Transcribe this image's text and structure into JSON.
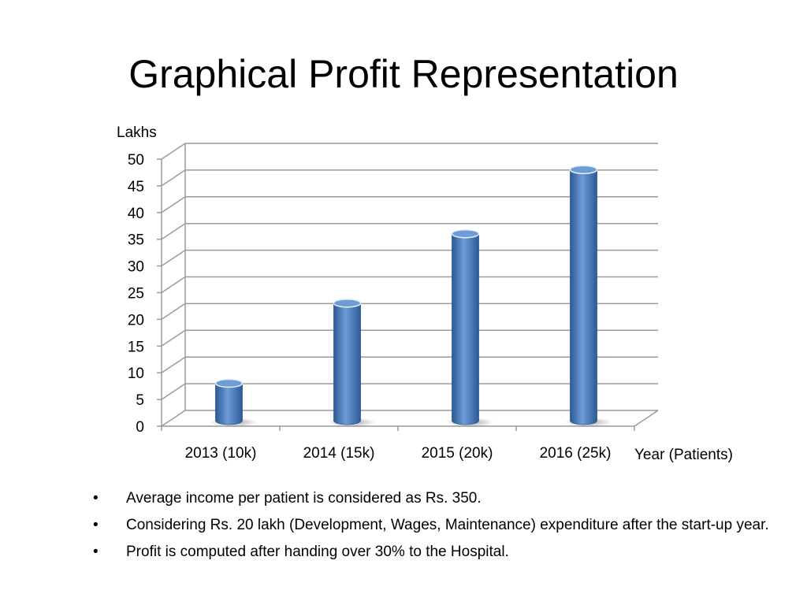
{
  "slide": {
    "title": "Graphical Profit Representation",
    "bullet_symbol": "•",
    "bullets": [
      "Average income per patient is considered as Rs. 350.",
      "Considering Rs. 20 lakh (Development, Wages, Maintenance) expenditure after the start-up year.",
      "Profit is computed after handing over 30% to the Hospital."
    ]
  },
  "chart_data": {
    "type": "bar",
    "title": "",
    "ylabel": "Lakhs",
    "xlabel": "Year (Patients)",
    "categories": [
      "2013 (10k)",
      "2014 (15k)",
      "2015 (20k)",
      "2016 (25k)"
    ],
    "values": [
      7,
      22,
      35,
      47
    ],
    "ylim": [
      0,
      50
    ],
    "yticks": [
      "0",
      "5",
      "10",
      "15",
      "20",
      "25",
      "30",
      "35",
      "40",
      "45",
      "50"
    ],
    "grid": true,
    "legend": "none",
    "colors": {
      "bar": "#4a7ec0",
      "bar_dark": "#2d5a94",
      "bar_top": "#6d9cd6",
      "grid": "#9a9a9a"
    }
  }
}
